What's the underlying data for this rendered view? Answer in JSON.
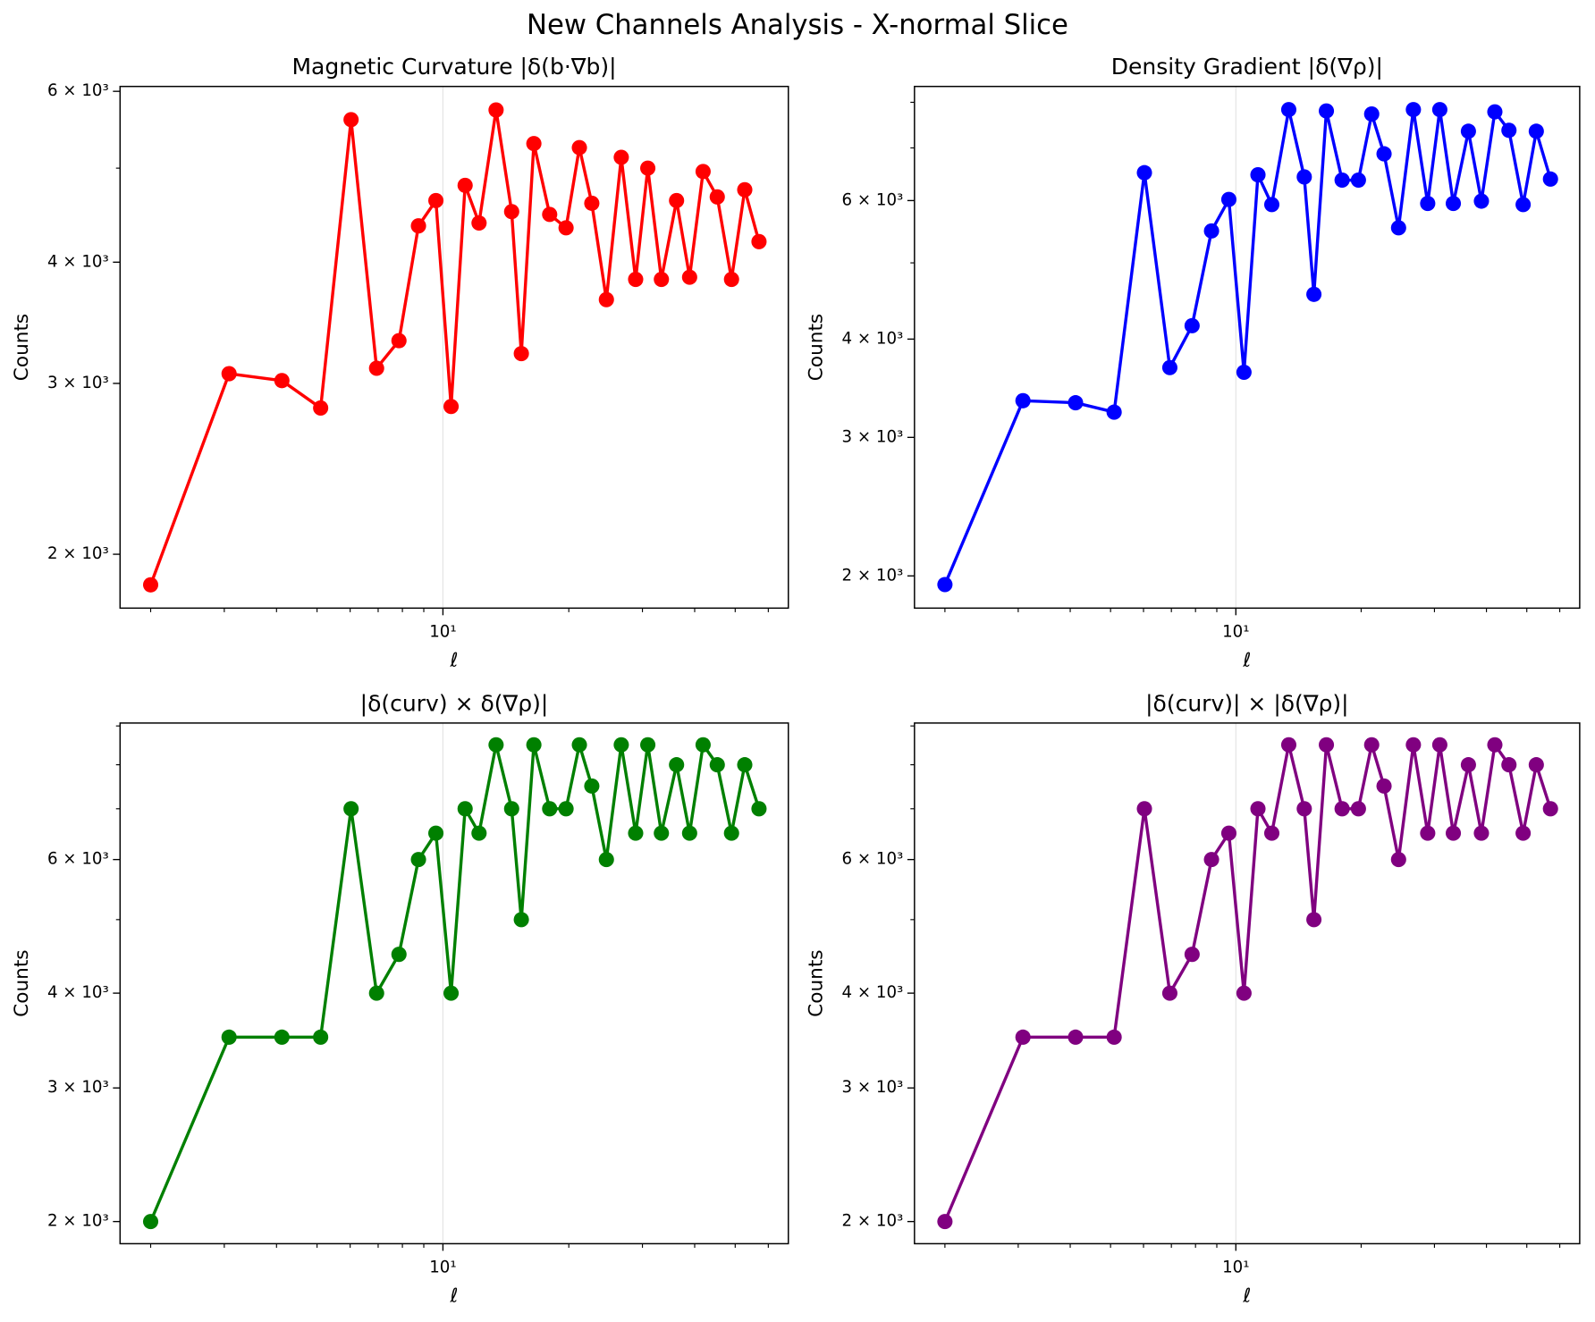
{
  "title": "New Channels Analysis - X-normal Slice",
  "chart_data": [
    {
      "type": "line",
      "title": "Magnetic Curvature |δ(b·∇b)|",
      "xlabel": "ℓ",
      "ylabel": "Counts",
      "color": "#ff0000",
      "x": [
        2.0,
        3.08,
        4.12,
        5.1,
        6.03,
        6.94,
        7.85,
        8.74,
        9.62,
        10.46,
        11.3,
        12.2,
        13.4,
        14.6,
        15.4,
        16.5,
        18.0,
        19.7,
        21.2,
        22.7,
        24.6,
        26.7,
        28.9,
        30.9,
        33.3,
        36.2,
        38.9,
        41.9,
        45.3,
        49.0,
        52.7,
        57.0
      ],
      "values": [
        1860,
        3070,
        3020,
        2830,
        5610,
        3110,
        3320,
        4360,
        4630,
        2840,
        4800,
        4390,
        5740,
        4510,
        3220,
        5300,
        4480,
        4340,
        5250,
        4600,
        3660,
        5130,
        3840,
        5000,
        3840,
        4630,
        3860,
        4960,
        4670,
        3840,
        4750,
        4200
      ],
      "xscale": "log",
      "yscale": "log",
      "xlim": [
        1.69,
        67
      ],
      "ylim": [
        1760,
        6070
      ],
      "xticks": [
        {
          "value": 10,
          "label": "10¹"
        }
      ],
      "xminorticks": [
        2,
        3,
        4,
        5,
        6,
        7,
        8,
        9,
        20,
        30,
        40,
        50,
        60
      ],
      "yticks": [
        {
          "value": 2000,
          "label": "2 × 10³"
        },
        {
          "value": 3000,
          "label": "3 × 10³"
        },
        {
          "value": 4000,
          "label": "4 × 10³"
        },
        {
          "value": 6000,
          "label": "6 × 10³"
        }
      ],
      "yminorticks": [
        5000
      ],
      "grid": "x"
    },
    {
      "type": "line",
      "title": "Density Gradient |δ(∇ρ)|",
      "xlabel": "ℓ",
      "ylabel": "Counts",
      "color": "#0000ff",
      "x": [
        2.0,
        3.08,
        4.12,
        5.1,
        6.03,
        6.94,
        7.85,
        8.74,
        9.62,
        10.46,
        11.3,
        12.2,
        13.4,
        14.6,
        15.4,
        16.5,
        18.0,
        19.7,
        21.2,
        22.7,
        24.6,
        26.7,
        28.9,
        30.9,
        33.3,
        36.2,
        38.9,
        41.9,
        45.3,
        49.0,
        52.7,
        57.0
      ],
      "values": [
        1950,
        3340,
        3320,
        3230,
        6510,
        3680,
        4160,
        5490,
        6020,
        3630,
        6470,
        5930,
        7830,
        6430,
        4560,
        7800,
        6370,
        6370,
        7730,
        6880,
        5540,
        7830,
        5950,
        7830,
        5950,
        7350,
        5990,
        7780,
        7370,
        5930,
        7350,
        6390
      ],
      "xscale": "log",
      "yscale": "log",
      "xlim": [
        1.69,
        67
      ],
      "ylim": [
        1820,
        8380
      ],
      "xticks": [
        {
          "value": 10,
          "label": "10¹"
        }
      ],
      "xminorticks": [
        2,
        3,
        4,
        5,
        6,
        7,
        8,
        9,
        20,
        30,
        40,
        50,
        60
      ],
      "yticks": [
        {
          "value": 2000,
          "label": "2 × 10³"
        },
        {
          "value": 3000,
          "label": "3 × 10³"
        },
        {
          "value": 4000,
          "label": "4 × 10³"
        },
        {
          "value": 6000,
          "label": "6 × 10³"
        }
      ],
      "yminorticks": [
        5000,
        7000,
        8000
      ],
      "grid": "x"
    },
    {
      "type": "line",
      "title": "|δ(curv) × δ(∇ρ)|",
      "xlabel": "ℓ",
      "ylabel": "Counts",
      "color": "#008000",
      "x": [
        2.0,
        3.08,
        4.12,
        5.1,
        6.03,
        6.94,
        7.85,
        8.74,
        9.62,
        10.46,
        11.3,
        12.2,
        13.4,
        14.6,
        15.4,
        16.5,
        18.0,
        19.7,
        21.2,
        22.7,
        24.6,
        26.7,
        28.9,
        30.9,
        33.3,
        36.2,
        38.9,
        41.9,
        45.3,
        49.0,
        52.7,
        57.0
      ],
      "values": [
        2000,
        3500,
        3500,
        3500,
        7000,
        4000,
        4500,
        6000,
        6500,
        4000,
        7000,
        6500,
        8500,
        7000,
        5000,
        8500,
        7000,
        7000,
        8500,
        7500,
        6000,
        8500,
        6500,
        8500,
        6500,
        8000,
        6500,
        8500,
        8000,
        6500,
        8000,
        7000
      ],
      "xscale": "log",
      "yscale": "log",
      "xlim": [
        1.69,
        67
      ],
      "ylim": [
        1870,
        9080
      ],
      "xticks": [
        {
          "value": 10,
          "label": "10¹"
        }
      ],
      "xminorticks": [
        2,
        3,
        4,
        5,
        6,
        7,
        8,
        9,
        20,
        30,
        40,
        50,
        60
      ],
      "yticks": [
        {
          "value": 2000,
          "label": "2 × 10³"
        },
        {
          "value": 3000,
          "label": "3 × 10³"
        },
        {
          "value": 4000,
          "label": "4 × 10³"
        },
        {
          "value": 6000,
          "label": "6 × 10³"
        }
      ],
      "yminorticks": [
        5000,
        7000,
        8000,
        9000
      ],
      "grid": "x"
    },
    {
      "type": "line",
      "title": "|δ(curv)| × |δ(∇ρ)|",
      "xlabel": "ℓ",
      "ylabel": "Counts",
      "color": "#800080",
      "x": [
        2.0,
        3.08,
        4.12,
        5.1,
        6.03,
        6.94,
        7.85,
        8.74,
        9.62,
        10.46,
        11.3,
        12.2,
        13.4,
        14.6,
        15.4,
        16.5,
        18.0,
        19.7,
        21.2,
        22.7,
        24.6,
        26.7,
        28.9,
        30.9,
        33.3,
        36.2,
        38.9,
        41.9,
        45.3,
        49.0,
        52.7,
        57.0
      ],
      "values": [
        2000,
        3500,
        3500,
        3500,
        7000,
        4000,
        4500,
        6000,
        6500,
        4000,
        7000,
        6500,
        8500,
        7000,
        5000,
        8500,
        7000,
        7000,
        8500,
        7500,
        6000,
        8500,
        6500,
        8500,
        6500,
        8000,
        6500,
        8500,
        8000,
        6500,
        8000,
        7000
      ],
      "xscale": "log",
      "yscale": "log",
      "xlim": [
        1.69,
        67
      ],
      "ylim": [
        1870,
        9080
      ],
      "xticks": [
        {
          "value": 10,
          "label": "10¹"
        }
      ],
      "xminorticks": [
        2,
        3,
        4,
        5,
        6,
        7,
        8,
        9,
        20,
        30,
        40,
        50,
        60
      ],
      "yticks": [
        {
          "value": 2000,
          "label": "2 × 10³"
        },
        {
          "value": 3000,
          "label": "3 × 10³"
        },
        {
          "value": 4000,
          "label": "4 × 10³"
        },
        {
          "value": 6000,
          "label": "6 × 10³"
        }
      ],
      "yminorticks": [
        5000,
        7000,
        8000,
        9000
      ],
      "grid": "x"
    }
  ]
}
